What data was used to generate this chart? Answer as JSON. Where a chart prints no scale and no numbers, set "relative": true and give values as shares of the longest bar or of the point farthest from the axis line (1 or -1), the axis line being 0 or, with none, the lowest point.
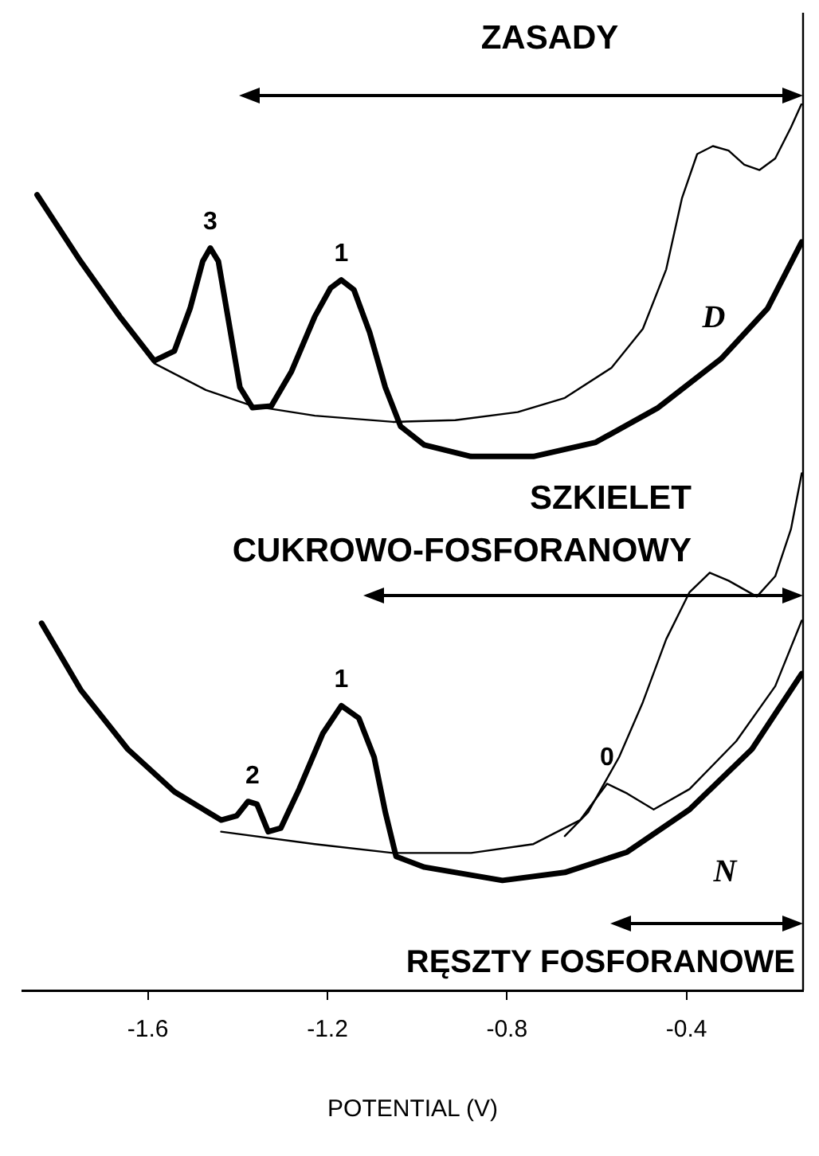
{
  "chart_data": {
    "type": "line",
    "relative": true,
    "xlabel": "POTENTIAL (V)",
    "xlim": [
      -1.88,
      -0.14
    ],
    "xticks": [
      -1.6,
      -1.2,
      -0.8,
      -0.4
    ],
    "series": [
      {
        "color": "#000000",
        "x": [
          -1.847,
          -1.75,
          -1.663,
          -1.586,
          -1.541,
          -1.506,
          -1.478,
          -1.461,
          -1.443,
          -1.419,
          -1.395,
          -1.367,
          -1.325,
          -1.28,
          -1.228,
          -1.193,
          -1.169,
          -1.141,
          -1.106,
          -1.071,
          -1.037,
          -0.984,
          -0.88,
          -0.741,
          -0.602,
          -0.463,
          -0.323,
          -0.219,
          -0.143
        ],
        "values": [
          0.897,
          0.822,
          0.76,
          0.71,
          0.721,
          0.769,
          0.822,
          0.837,
          0.822,
          0.751,
          0.68,
          0.657,
          0.659,
          0.698,
          0.76,
          0.792,
          0.801,
          0.79,
          0.742,
          0.68,
          0.636,
          0.615,
          0.602,
          0.602,
          0.618,
          0.657,
          0.712,
          0.769,
          0.844
        ]
      },
      {
        "color": "#000000",
        "x": [
          -1.586,
          -1.471,
          -1.367,
          -1.228,
          -1.054,
          -0.915,
          -0.776,
          -0.671,
          -0.567,
          -0.497,
          -0.445,
          -0.41,
          -0.376,
          -0.341,
          -0.306,
          -0.271,
          -0.237,
          -0.202,
          -0.167,
          -0.143
        ],
        "values": [
          0.707,
          0.677,
          0.659,
          0.648,
          0.641,
          0.643,
          0.652,
          0.668,
          0.702,
          0.746,
          0.813,
          0.893,
          0.943,
          0.952,
          0.947,
          0.931,
          0.925,
          0.938,
          0.973,
          1.0
        ]
      },
      {
        "color": "#000000",
        "x": [
          -1.837,
          -1.75,
          -1.645,
          -1.541,
          -1.437,
          -1.402,
          -1.377,
          -1.357,
          -1.332,
          -1.304,
          -1.263,
          -1.21,
          -1.169,
          -1.13,
          -1.096,
          -1.071,
          -1.047,
          -0.984,
          -0.81,
          -0.671,
          -0.532,
          -0.393,
          -0.254,
          -0.143
        ],
        "values": [
          0.414,
          0.339,
          0.272,
          0.224,
          0.192,
          0.197,
          0.213,
          0.21,
          0.179,
          0.183,
          0.227,
          0.29,
          0.321,
          0.307,
          0.263,
          0.201,
          0.151,
          0.139,
          0.124,
          0.133,
          0.156,
          0.204,
          0.272,
          0.357
        ]
      },
      {
        "color": "#000000",
        "x": [
          -1.437,
          -1.228,
          -1.054,
          -0.88,
          -0.741,
          -0.637,
          -0.577,
          -0.532,
          -0.473,
          -0.393,
          -0.289,
          -0.202,
          -0.143
        ],
        "values": [
          0.179,
          0.165,
          0.155,
          0.155,
          0.165,
          0.192,
          0.233,
          0.222,
          0.204,
          0.227,
          0.281,
          0.343,
          0.417
        ]
      },
      {
        "color": "#000000",
        "x": [
          -0.671,
          -0.619,
          -0.55,
          -0.497,
          -0.445,
          -0.393,
          -0.348,
          -0.306,
          -0.243,
          -0.202,
          -0.167,
          -0.143
        ],
        "values": [
          0.174,
          0.201,
          0.263,
          0.325,
          0.396,
          0.449,
          0.471,
          0.462,
          0.444,
          0.467,
          0.52,
          0.583
        ]
      }
    ],
    "annotations": [
      "ZASADY",
      "SZKIELET CUKROWO-FOSFORANOWY",
      "RĘSZTY FOSFORANOWE",
      "D",
      "N",
      {
        "text": "3",
        "x": -1.461,
        "y": 0.837
      },
      {
        "text": "1",
        "x": -1.169,
        "y": 0.801
      },
      {
        "text": "2",
        "x": -1.367,
        "y": 0.213
      },
      {
        "text": "1",
        "x": -1.169,
        "y": 0.321
      },
      {
        "text": "0",
        "x": -0.577,
        "y": 0.233
      }
    ]
  }
}
